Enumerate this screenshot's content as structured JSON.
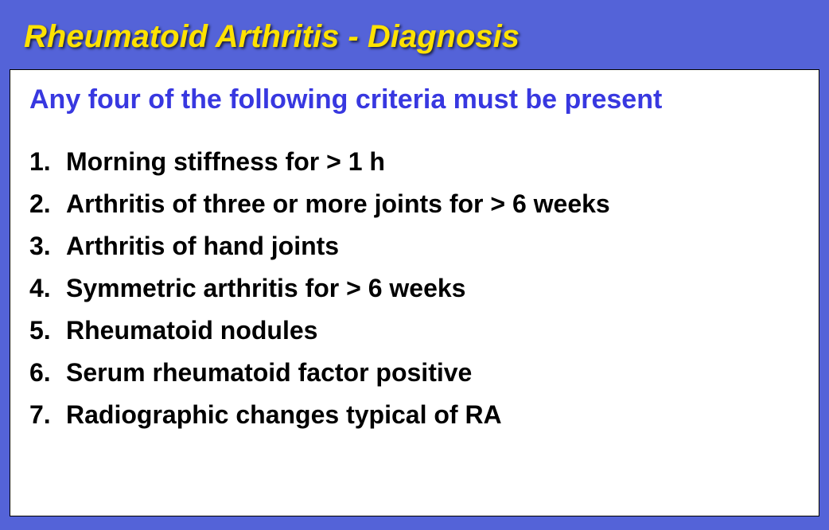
{
  "header": {
    "title": "Rheumatoid Arthritis - Diagnosis"
  },
  "content": {
    "subheading": "Any four of the following criteria must be present",
    "criteria": [
      {
        "num": "1.",
        "text": "Morning stiffness for > 1 h"
      },
      {
        "num": "2.",
        "text": "Arthritis of three or more joints for > 6 weeks"
      },
      {
        "num": "3.",
        "text": "Arthritis of hand joints"
      },
      {
        "num": "4.",
        "text": "Symmetric arthritis for > 6 weeks"
      },
      {
        "num": "5.",
        "text": "Rheumatoid nodules"
      },
      {
        "num": "6.",
        "text": "Serum rheumatoid factor positive"
      },
      {
        "num": "7.",
        "text": "Radiographic changes typical of RA"
      }
    ]
  },
  "style": {
    "background_color": "#5463d8",
    "content_background": "#ffffff",
    "title_color": "#ffe200",
    "title_fontsize": 40,
    "title_font_style": "italic",
    "title_font_weight": "bold",
    "subheading_color": "#3838e0",
    "subheading_fontsize": 34,
    "subheading_font_weight": "bold",
    "criteria_color": "#000000",
    "criteria_fontsize": 32,
    "criteria_font_weight": "bold",
    "content_border_color": "#000000"
  }
}
